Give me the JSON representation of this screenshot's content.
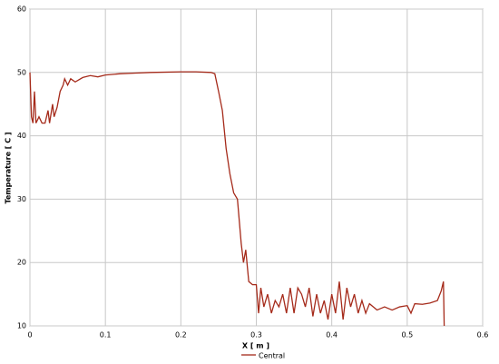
{
  "chart_data": {
    "type": "line",
    "x_label": "X [ m ]",
    "y_label": "Temperature [ C ]",
    "x": [
      0,
      0.002,
      0.004,
      0.006,
      0.008,
      0.012,
      0.016,
      0.02,
      0.024,
      0.026,
      0.03,
      0.032,
      0.036,
      0.04,
      0.044,
      0.046,
      0.05,
      0.054,
      0.06,
      0.07,
      0.08,
      0.09,
      0.1,
      0.12,
      0.14,
      0.16,
      0.2,
      0.22,
      0.24,
      0.245,
      0.25,
      0.255,
      0.26,
      0.265,
      0.27,
      0.275,
      0.28,
      0.283,
      0.286,
      0.29,
      0.295,
      0.3,
      0.303,
      0.306,
      0.31,
      0.315,
      0.32,
      0.325,
      0.33,
      0.335,
      0.34,
      0.345,
      0.35,
      0.355,
      0.36,
      0.365,
      0.37,
      0.375,
      0.38,
      0.385,
      0.39,
      0.395,
      0.4,
      0.405,
      0.41,
      0.415,
      0.42,
      0.425,
      0.43,
      0.435,
      0.44,
      0.445,
      0.45,
      0.46,
      0.47,
      0.48,
      0.49,
      0.5,
      0.505,
      0.51,
      0.52,
      0.53,
      0.54,
      0.545,
      0.548,
      0.549
    ],
    "series": [
      {
        "name": "Central",
        "color": "#a52a1a",
        "values": [
          50,
          43,
          42,
          47,
          42,
          43,
          42,
          42,
          44,
          42,
          45,
          43,
          44.5,
          47,
          48,
          49,
          48,
          49,
          48.5,
          49.2,
          49.5,
          49.3,
          49.6,
          49.8,
          49.9,
          50,
          50.1,
          50.1,
          50,
          49.8,
          47,
          44,
          38,
          34,
          31,
          30,
          23,
          20,
          22,
          17,
          16.5,
          16.5,
          12,
          16,
          13,
          15,
          12,
          14,
          13,
          15,
          12,
          16,
          12,
          16,
          15,
          13,
          16,
          11.5,
          15,
          12,
          14,
          11,
          15,
          12,
          17,
          11,
          16,
          13,
          15,
          12,
          14,
          12,
          13.5,
          12.5,
          13,
          12.5,
          13,
          13.2,
          12,
          13.5,
          13.4,
          13.6,
          14,
          15.5,
          17,
          10
        ]
      }
    ],
    "xlim": [
      0,
      0.6
    ],
    "xticks": [
      0,
      0.1,
      0.2,
      0.3,
      0.4,
      0.5,
      0.6
    ],
    "ylim": [
      10,
      60
    ],
    "yticks": [
      10,
      20,
      30,
      40,
      50,
      60
    ],
    "grid": true
  }
}
